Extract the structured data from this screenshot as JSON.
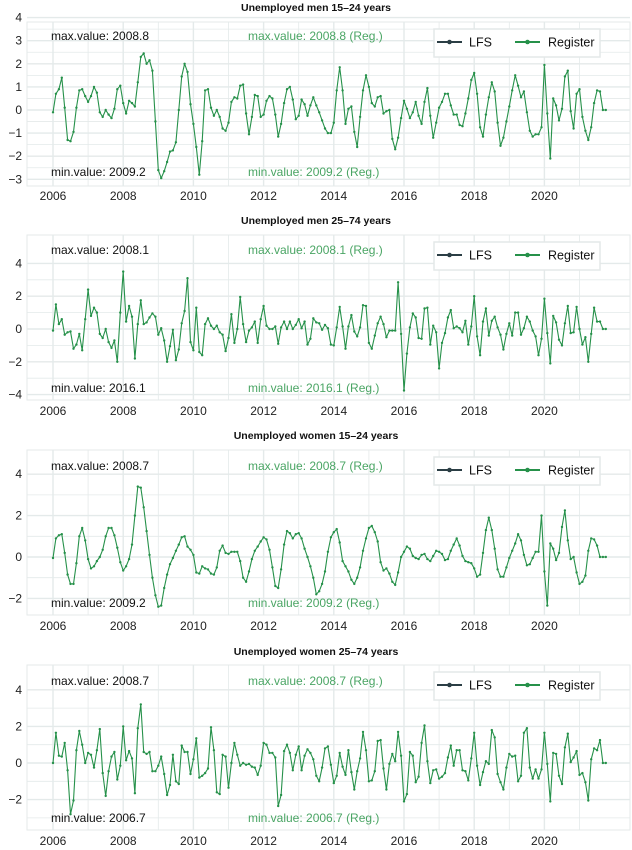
{
  "colors": {
    "register": "#26914a",
    "lfs": "#2b3e45",
    "annotation_register": "#4aa564",
    "annotation_lfs": "#111111",
    "grid": "#e4eaea"
  },
  "chart_data": [
    {
      "type": "line",
      "title": "Unemployed men 15–24 years",
      "start": "2006-01",
      "frequency": "monthly",
      "xticks": [
        "2006",
        "2008",
        "2010",
        "2012",
        "2014",
        "2016",
        "2018",
        "2020"
      ],
      "yticks": [
        4,
        3,
        2,
        1,
        0,
        -1,
        -2,
        -3
      ],
      "ylim": [
        -3.2,
        4.2
      ],
      "grid": true,
      "legend": {
        "placement": "top-right",
        "entries": [
          "LFS",
          "Register"
        ]
      },
      "annotations": {
        "max_lfs": "max.value: 2008.8",
        "max_reg": "max.value: 2008.8 (Reg.)",
        "min_lfs": "min.value: 2009.2",
        "min_reg": "min.value: 2009.2 (Reg.)"
      },
      "series": [
        {
          "name": "Register",
          "values": [
            -0.1,
            0.7,
            0.9,
            1.4,
            0.1,
            -1.3,
            -1.35,
            -0.95,
            0.1,
            0.85,
            0.9,
            0.6,
            0.35,
            0.6,
            1.0,
            0.75,
            -0.1,
            -0.3,
            0,
            -0.2,
            -0.35,
            0.05,
            0.9,
            1.05,
            0.3,
            -0.15,
            0.4,
            0.3,
            0.15,
            1.2,
            2.3,
            2.45,
            2.0,
            2.15,
            1.7,
            -0.5,
            -2.6,
            -2.95,
            -2.65,
            -2.25,
            -1.8,
            -1.75,
            -1.4,
            0,
            1.45,
            2.0,
            1.65,
            0.25,
            -0.6,
            -1.6,
            -2.8,
            -1.35,
            0.85,
            0.9,
            0.1,
            -0.25,
            0,
            -0.3,
            -0.8,
            -0.9,
            -0.55,
            0.35,
            0.55,
            0.5,
            1.05,
            1.1,
            -0.15,
            -1.05,
            -0.3,
            0.65,
            0.6,
            -0.3,
            -0.2,
            0.4,
            0.6,
            0.5,
            -0.2,
            -1.15,
            -0.6,
            0.3,
            0.9,
            1.0,
            0.45,
            -0.4,
            -0.25,
            0.45,
            0.25,
            -0.25,
            0.2,
            0.55,
            0.2,
            -0.1,
            -0.45,
            -0.8,
            -1.0,
            -1.0,
            -0.55,
            0.85,
            1.85,
            0.85,
            -0.6,
            0.05,
            0.15,
            -0.95,
            -1.6,
            -0.3,
            0.85,
            1.5,
            1.0,
            0.3,
            0.15,
            0.55,
            0.6,
            -0.15,
            -0.05,
            0,
            -1.25,
            -1.7,
            -1.2,
            -0.35,
            0.4,
            0.05,
            -0.35,
            -0.1,
            0.35,
            -0.25,
            -0.6,
            0.35,
            0.95,
            -0.25,
            -1.2,
            -0.55,
            0.1,
            0.35,
            0.7,
            0.7,
            0.2,
            -0.2,
            -0.2,
            -0.65,
            -0.7,
            -0.15,
            0.5,
            1.3,
            1.6,
            0.7,
            -0.75,
            -1.15,
            -0.2,
            0.55,
            1.2,
            0.8,
            -0.55,
            -1.55,
            -1.2,
            -0.5,
            0.15,
            0.85,
            1.5,
            1.05,
            0.55,
            0.8,
            -0.1,
            -0.9,
            -1.15,
            -1.05,
            -1.05,
            -0.75,
            1.95,
            -0.15,
            -2.1,
            0.5,
            0.2,
            -0.45,
            0.05,
            1.45,
            1.7,
            -0.05,
            -0.8,
            0.7,
            0.9,
            -0.3,
            -0.9,
            -1.3,
            -0.75,
            0.3,
            0.85,
            0.8,
            0,
            0
          ]
        }
      ]
    },
    {
      "type": "line",
      "title": "Unemployed men 25–74 years",
      "start": "2006-01",
      "frequency": "monthly",
      "xticks": [
        "2006",
        "2008",
        "2010",
        "2012",
        "2014",
        "2016",
        "2018",
        "2020"
      ],
      "yticks": [
        4,
        2,
        0,
        -2,
        -4
      ],
      "ylim": [
        -4.2,
        5.6
      ],
      "grid": true,
      "legend": {
        "placement": "top-right",
        "entries": [
          "LFS",
          "Register"
        ]
      },
      "annotations": {
        "max_lfs": "max.value: 2008.1",
        "max_reg": "max.value: 2008.1 (Reg.)",
        "min_lfs": "min.value: 2016.1",
        "min_reg": "min.value: 2016.1 (Reg.)"
      },
      "series": [
        {
          "name": "Register",
          "values": [
            -0.1,
            1.5,
            0.3,
            0.6,
            -0.35,
            -0.2,
            -0.15,
            -1.2,
            -0.95,
            -0.3,
            -1.3,
            0.6,
            2.4,
            0.8,
            1.3,
            1.0,
            -0.3,
            -0.55,
            0,
            -0.8,
            -1.15,
            -0.7,
            -2.0,
            1.0,
            3.5,
            0.45,
            1.4,
            0.75,
            -1.8,
            0.3,
            1.75,
            0.3,
            0.4,
            0.7,
            0.95,
            0.75,
            -0.35,
            0.05,
            -0.7,
            -2.0,
            -1.05,
            -0.05,
            -1.9,
            -1.25,
            0.35,
            1.1,
            3.1,
            -0.8,
            -1.3,
            1.3,
            -1.4,
            -1.6,
            0.3,
            0.65,
            0.2,
            0,
            0.2,
            -0.2,
            -0.35,
            -1.35,
            -0.55,
            0.9,
            -0.85,
            0,
            1.95,
            0.3,
            -0.8,
            -0.1,
            0.1,
            0.45,
            -0.85,
            0.6,
            1.4,
            0.2,
            0,
            0,
            0.15,
            -0.9,
            0.1,
            0.45,
            0,
            0.45,
            0,
            0.25,
            0.6,
            0.05,
            0.45,
            -0.95,
            -0.6,
            0.65,
            0.4,
            0.35,
            -0.05,
            0.25,
            0.05,
            -0.95,
            -1.0,
            0.1,
            1.35,
            0.15,
            -1.2,
            0.15,
            0.85,
            -0.15,
            -0.45,
            0.1,
            1.45,
            1.4,
            -0.85,
            -1.2,
            -0.4,
            0.35,
            0.75,
            0.3,
            -0.5,
            -0.1,
            -0.1,
            -0.1,
            2.85,
            -0.3,
            -3.75,
            -1.5,
            0.1,
            0.95,
            0.7,
            -0.55,
            -0.6,
            1.25,
            1.3,
            -0.95,
            0.2,
            -0.2,
            -2.4,
            -0.85,
            -0.25,
            0.7,
            1.15,
            0.05,
            0.15,
            0.05,
            -0.2,
            0.5,
            -0.95,
            0.15,
            2.0,
            -0.45,
            -1.6,
            0.45,
            1.25,
            -0.4,
            0.5,
            0.75,
            0.1,
            -0.35,
            -1.25,
            -0.3,
            0.35,
            -0.4,
            1.0,
            1.0,
            -0.35,
            0.05,
            0.75,
            0.45,
            -0.1,
            -0.45,
            -1.6,
            -0.6,
            1.85,
            -0.25,
            -2.1,
            0.8,
            0.4,
            -0.65,
            -1.0,
            0.35,
            1.4,
            -0.25,
            -0.2,
            1.35,
            0,
            -0.95,
            -0.5,
            -2.0,
            -0.3,
            1.3,
            0.45,
            0.45,
            0,
            0
          ]
        }
      ]
    },
    {
      "type": "line",
      "title": "Unemployed women 15–24 years",
      "start": "2006-01",
      "frequency": "monthly",
      "xticks": [
        "2006",
        "2008",
        "2010",
        "2012",
        "2014",
        "2016",
        "2018",
        "2020"
      ],
      "yticks": [
        4,
        2,
        0,
        -2
      ],
      "ylim": [
        -2.6,
        5.1
      ],
      "grid": true,
      "legend": {
        "placement": "top-right",
        "entries": [
          "LFS",
          "Register"
        ]
      },
      "annotations": {
        "max_lfs": "max.value: 2008.7",
        "max_reg": "max.value: 2008.7 (Reg.)",
        "min_lfs": "min.value: 2009.2",
        "min_reg": "min.value: 2009.2 (Reg.)"
      },
      "series": [
        {
          "name": "Register",
          "values": [
            -0.05,
            0.9,
            1.05,
            1.1,
            0.2,
            -0.85,
            -1.3,
            -1.3,
            -0.3,
            1.0,
            1.4,
            0.8,
            -0.1,
            -0.55,
            -0.45,
            -0.2,
            0,
            0.35,
            1.0,
            1.4,
            1.4,
            1.05,
            0.45,
            -0.25,
            -0.65,
            -0.45,
            -0.1,
            0.6,
            2.0,
            3.4,
            3.35,
            2.4,
            1.25,
            0.1,
            -1.0,
            -1.85,
            -2.4,
            -2.35,
            -1.5,
            -0.85,
            -0.35,
            -0.05,
            0.3,
            0.6,
            0.95,
            1.0,
            0.5,
            0.35,
            0.1,
            -0.75,
            -0.8,
            -0.45,
            -0.55,
            -0.6,
            -0.8,
            -0.85,
            -0.5,
            0.3,
            0.55,
            0.2,
            0.15,
            0.25,
            0.25,
            0.25,
            -0.2,
            -1.0,
            -1.2,
            -0.7,
            -0.1,
            0.3,
            0.5,
            0.75,
            0.95,
            0.85,
            0.35,
            -0.5,
            -1.4,
            -1.5,
            -0.6,
            0.6,
            1.25,
            1.15,
            0.9,
            1.1,
            1.15,
            0.9,
            0.4,
            0,
            -0.45,
            -1.0,
            -1.8,
            -1.65,
            -1.3,
            -0.7,
            0.25,
            0.95,
            1.2,
            1.35,
            0.7,
            -0.2,
            -0.45,
            -0.7,
            -1.1,
            -1.3,
            -1.0,
            -0.5,
            0.3,
            0.9,
            1.4,
            1.5,
            1.2,
            0.75,
            -0.25,
            -0.65,
            -0.55,
            -0.8,
            -1.2,
            -1.35,
            -0.75,
            0,
            0.25,
            0.5,
            0.4,
            0.05,
            -0.05,
            -0.1,
            0.1,
            0.15,
            -0.1,
            -0.2,
            0.05,
            0.3,
            0.25,
            0.15,
            -0.15,
            -0.1,
            0.3,
            0.6,
            0.9,
            0.55,
            0.05,
            -0.2,
            -0.25,
            -0.3,
            -0.55,
            -0.95,
            -0.85,
            0.2,
            1.3,
            1.9,
            1.3,
            0.4,
            -0.6,
            -0.95,
            -0.95,
            -0.5,
            -0.05,
            0.3,
            0.65,
            1.1,
            0.8,
            0.1,
            -0.4,
            -0.35,
            -0.05,
            0.25,
            0.25,
            2.0,
            -0.7,
            -2.35,
            0.65,
            0.4,
            -0.15,
            0.2,
            1.45,
            2.25,
            0.8,
            -0.1,
            0,
            -0.75,
            -1.3,
            -1.2,
            -0.9,
            0.3,
            0.9,
            0.85,
            0.55,
            0,
            0,
            0
          ]
        }
      ]
    },
    {
      "type": "line",
      "title": "Unemployed women 25–74 years",
      "start": "2006-01",
      "frequency": "monthly",
      "xticks": [
        "2006",
        "2008",
        "2010",
        "2012",
        "2014",
        "2016",
        "2018",
        "2020"
      ],
      "yticks": [
        4,
        2,
        0,
        -2
      ],
      "ylim": [
        -3.1,
        5.0
      ],
      "grid": true,
      "legend": {
        "placement": "top-right",
        "entries": [
          "LFS",
          "Register"
        ]
      },
      "annotations": {
        "max_lfs": "max.value: 2008.7",
        "max_reg": "max.value: 2008.7 (Reg.)",
        "min_lfs": "min.value: 2006.7",
        "min_reg": "min.value: 2006.7 (Reg.)"
      },
      "series": [
        {
          "name": "Register",
          "values": [
            0,
            1.65,
            0.4,
            0.35,
            1.1,
            -0.4,
            -2.8,
            -2.05,
            0.7,
            1.75,
            1.0,
            0,
            0.55,
            0.45,
            -0.25,
            0.7,
            1.85,
            -0.55,
            -1.8,
            -0.45,
            0.35,
            0.6,
            -0.9,
            -0.15,
            2.0,
            0.15,
            0.65,
            0.25,
            -1.65,
            1.9,
            3.2,
            0.6,
            0.5,
            0.6,
            -0.45,
            -0.45,
            -0.15,
            0.35,
            -0.6,
            -1.75,
            -1.2,
            0.45,
            -1.0,
            -1.15,
            0.95,
            0.6,
            0.6,
            -0.6,
            0.2,
            1.35,
            -0.8,
            -0.7,
            -0.55,
            -0.3,
            1.95,
            0.7,
            -1.6,
            -1.7,
            0.45,
            0.35,
            -1.35,
            0,
            1.1,
            0.45,
            -0.15,
            0,
            -0.1,
            -0.05,
            -0.2,
            -0.25,
            -0.65,
            -0.15,
            1.1,
            1.0,
            0.55,
            0.55,
            0.3,
            -2.35,
            -1.75,
            0.65,
            1.0,
            0.55,
            -0.4,
            0.45,
            0.9,
            -0.4,
            0.4,
            0.75,
            0.55,
            0.2,
            -0.7,
            -1.0,
            -0.25,
            0.8,
            0.9,
            -0.1,
            -1.1,
            -0.7,
            0.55,
            -0.2,
            -0.65,
            0.7,
            -0.5,
            -1.45,
            -0.45,
            0.25,
            1.7,
            0.7,
            -1.0,
            -0.95,
            -0.45,
            1.2,
            1.25,
            -0.3,
            -1.45,
            -0.05,
            0.5,
            0.1,
            1.7,
            0.4,
            -2.1,
            -1.7,
            0.6,
            0.4,
            -1.05,
            -0.75,
            1.1,
            2.05,
            0.1,
            -1.1,
            -0.4,
            -0.35,
            -0.85,
            -0.75,
            -0.55,
            0.3,
            0.95,
            -0.15,
            0.7,
            0.7,
            -0.4,
            -0.45,
            -0.95,
            0.25,
            1.65,
            -0.15,
            -1.2,
            -0.5,
            0.1,
            -0.05,
            1.8,
            1.4,
            -0.6,
            -1.05,
            -1.45,
            -0.25,
            0.5,
            0.35,
            0.4,
            -1.0,
            -0.7,
            1.65,
            1.9,
            -0.25,
            -0.85,
            -0.35,
            -0.85,
            -0.35,
            1.65,
            -0.05,
            -2.1,
            0.55,
            0.5,
            -0.7,
            -1.15,
            0.85,
            1.6,
            0.05,
            0.3,
            0.65,
            -0.65,
            -0.55,
            -1.05,
            -2.05,
            0.2,
            0.8,
            0.7,
            1.25,
            0,
            0
          ]
        }
      ]
    }
  ]
}
